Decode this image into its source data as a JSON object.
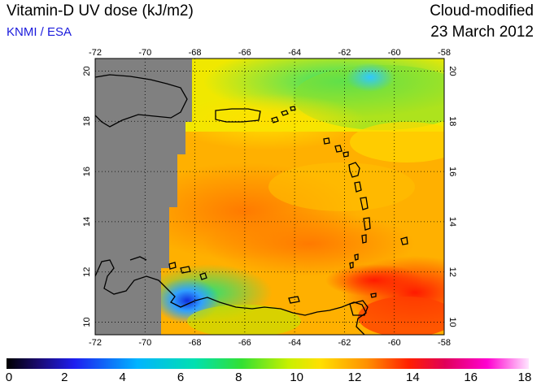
{
  "header": {
    "title": "Vitamin-D UV dose (kJ/m2)",
    "credit": "KNMI / ESA",
    "product": "Cloud-modified",
    "date": "23 March 2012"
  },
  "map": {
    "lon_ticks": [
      "-72",
      "-70",
      "-68",
      "-66",
      "-64",
      "-62",
      "-60",
      "-58"
    ],
    "lat_ticks": [
      "20",
      "18",
      "16",
      "14",
      "12",
      "10"
    ],
    "lon_range": [
      -72,
      -58
    ],
    "lat_range": [
      9.5,
      20.5
    ],
    "no_data_color": "#808080",
    "grid": "dotted",
    "coastline_color": "#000000"
  },
  "colorbar": {
    "labels": [
      "0",
      "2",
      "4",
      "6",
      "8",
      "10",
      "12",
      "14",
      "16",
      "18"
    ],
    "range": [
      0,
      18
    ]
  }
}
